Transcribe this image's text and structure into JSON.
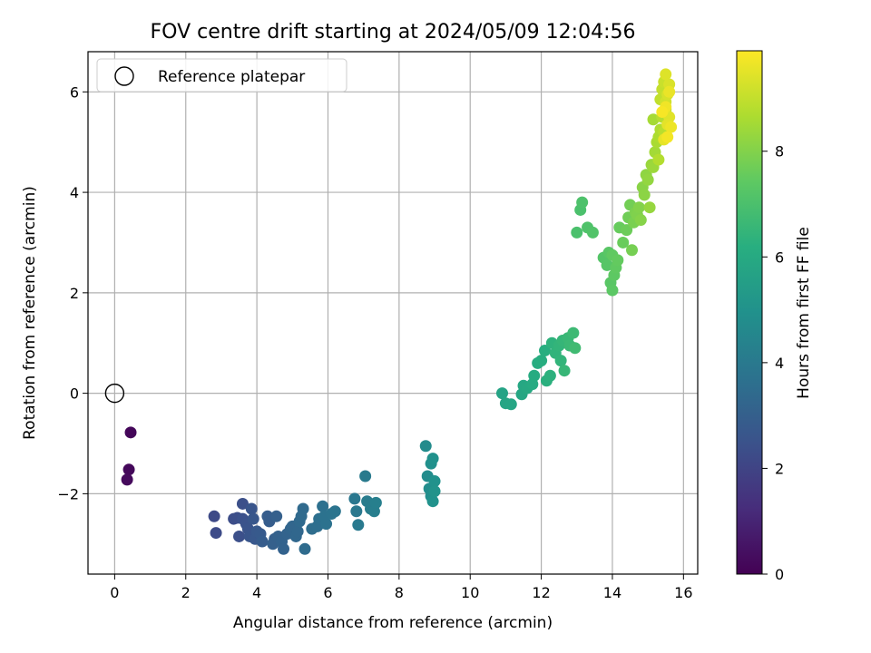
{
  "chart_data": {
    "type": "scatter",
    "title": "FOV centre drift starting at 2024/05/09 12:04:56",
    "xlabel": "Angular distance from reference (arcmin)",
    "ylabel": "Rotation from reference (arcmin)",
    "xlim": [
      -0.75,
      16.4
    ],
    "ylim": [
      -3.6,
      6.8
    ],
    "xticks": [
      0,
      2,
      4,
      6,
      8,
      10,
      12,
      14,
      16
    ],
    "yticks": [
      -2,
      0,
      2,
      4,
      6
    ],
    "grid": true,
    "legend": {
      "placement": "upper-left",
      "entries": [
        "Reference platepar"
      ]
    },
    "reference_point": {
      "name": "Reference platepar",
      "x": 0,
      "y": 0
    },
    "colorbar": {
      "label": "Hours from first FF file",
      "colormap": "viridis",
      "range": [
        0,
        9.9
      ],
      "ticks": [
        0,
        2,
        4,
        6,
        8
      ]
    },
    "points": [
      [
        0.45,
        -0.78,
        0.15
      ],
      [
        0.4,
        -1.52,
        0.2
      ],
      [
        0.35,
        -1.72,
        0.25
      ],
      [
        2.8,
        -2.45,
        2.2
      ],
      [
        2.85,
        -2.78,
        2.25
      ],
      [
        3.35,
        -2.5,
        2.3
      ],
      [
        3.45,
        -2.48,
        2.35
      ],
      [
        3.6,
        -2.2,
        2.4
      ],
      [
        3.5,
        -2.85,
        2.4
      ],
      [
        3.6,
        -2.5,
        2.45
      ],
      [
        3.7,
        -2.6,
        2.5
      ],
      [
        3.75,
        -2.7,
        2.55
      ],
      [
        3.85,
        -2.3,
        2.6
      ],
      [
        3.8,
        -2.85,
        2.6
      ],
      [
        3.9,
        -2.5,
        2.65
      ],
      [
        3.95,
        -2.9,
        2.7
      ],
      [
        4.0,
        -2.75,
        2.75
      ],
      [
        4.1,
        -2.8,
        2.8
      ],
      [
        4.15,
        -2.95,
        2.85
      ],
      [
        4.3,
        -2.45,
        2.9
      ],
      [
        4.35,
        -2.55,
        2.9
      ],
      [
        4.5,
        -2.9,
        2.95
      ],
      [
        4.45,
        -3.0,
        3.0
      ],
      [
        4.55,
        -2.45,
        3.0
      ],
      [
        4.6,
        -2.85,
        3.05
      ],
      [
        4.7,
        -2.95,
        3.1
      ],
      [
        4.75,
        -3.1,
        3.1
      ],
      [
        4.85,
        -2.8,
        3.15
      ],
      [
        4.95,
        -2.7,
        3.2
      ],
      [
        5.0,
        -2.65,
        3.25
      ],
      [
        5.1,
        -2.85,
        3.3
      ],
      [
        5.15,
        -2.75,
        3.3
      ],
      [
        5.2,
        -2.55,
        3.35
      ],
      [
        5.25,
        -2.45,
        3.4
      ],
      [
        5.3,
        -2.3,
        3.4
      ],
      [
        5.35,
        -3.1,
        3.45
      ],
      [
        5.55,
        -2.7,
        3.5
      ],
      [
        5.7,
        -2.65,
        3.55
      ],
      [
        5.75,
        -2.5,
        3.6
      ],
      [
        5.85,
        -2.25,
        3.65
      ],
      [
        5.9,
        -2.45,
        3.7
      ],
      [
        5.95,
        -2.6,
        3.7
      ],
      [
        6.1,
        -2.4,
        3.75
      ],
      [
        6.2,
        -2.35,
        3.8
      ],
      [
        6.75,
        -2.1,
        3.9
      ],
      [
        6.8,
        -2.35,
        3.95
      ],
      [
        6.85,
        -2.62,
        4.0
      ],
      [
        7.05,
        -1.65,
        4.05
      ],
      [
        7.1,
        -2.15,
        4.1
      ],
      [
        7.2,
        -2.3,
        4.15
      ],
      [
        7.3,
        -2.35,
        4.2
      ],
      [
        7.35,
        -2.18,
        4.25
      ],
      [
        8.75,
        -1.05,
        4.7
      ],
      [
        8.8,
        -1.65,
        4.75
      ],
      [
        8.85,
        -1.9,
        4.8
      ],
      [
        8.9,
        -2.05,
        4.85
      ],
      [
        8.9,
        -1.4,
        4.9
      ],
      [
        8.95,
        -1.3,
        4.95
      ],
      [
        8.95,
        -2.15,
        5.0
      ],
      [
        9.0,
        -1.75,
        5.0
      ],
      [
        9.0,
        -1.95,
        5.05
      ],
      [
        10.9,
        0.0,
        5.7
      ],
      [
        11.0,
        -0.2,
        5.75
      ],
      [
        11.15,
        -0.22,
        5.8
      ],
      [
        11.45,
        -0.02,
        5.85
      ],
      [
        11.5,
        0.15,
        5.9
      ],
      [
        11.6,
        0.1,
        5.95
      ],
      [
        11.75,
        0.18,
        6.0
      ],
      [
        11.8,
        0.35,
        6.05
      ],
      [
        11.9,
        0.6,
        6.1
      ],
      [
        12.0,
        0.65,
        6.15
      ],
      [
        12.1,
        0.85,
        6.2
      ],
      [
        12.15,
        0.25,
        6.25
      ],
      [
        12.25,
        0.35,
        6.3
      ],
      [
        12.3,
        1.0,
        6.35
      ],
      [
        12.4,
        0.8,
        6.4
      ],
      [
        12.5,
        0.95,
        6.45
      ],
      [
        12.55,
        0.65,
        6.45
      ],
      [
        12.6,
        1.05,
        6.5
      ],
      [
        12.65,
        0.45,
        6.55
      ],
      [
        12.75,
        1.1,
        6.6
      ],
      [
        12.8,
        0.95,
        6.65
      ],
      [
        12.9,
        1.2,
        6.7
      ],
      [
        12.95,
        0.9,
        6.75
      ],
      [
        13.0,
        3.2,
        7.0
      ],
      [
        13.1,
        3.65,
        7.0
      ],
      [
        13.15,
        3.8,
        7.05
      ],
      [
        13.3,
        3.3,
        7.1
      ],
      [
        13.45,
        3.2,
        7.15
      ],
      [
        13.75,
        2.7,
        7.2
      ],
      [
        13.85,
        2.55,
        7.25
      ],
      [
        13.9,
        2.8,
        7.3
      ],
      [
        13.95,
        2.2,
        7.3
      ],
      [
        14.0,
        2.05,
        7.35
      ],
      [
        14.05,
        2.35,
        7.4
      ],
      [
        14.1,
        2.5,
        7.45
      ],
      [
        14.0,
        2.75,
        7.45
      ],
      [
        14.15,
        2.65,
        7.5
      ],
      [
        14.2,
        3.3,
        7.55
      ],
      [
        14.3,
        3.0,
        7.6
      ],
      [
        14.4,
        3.25,
        7.65
      ],
      [
        14.45,
        3.5,
        7.7
      ],
      [
        14.5,
        3.75,
        7.75
      ],
      [
        14.55,
        2.85,
        7.8
      ],
      [
        14.6,
        3.4,
        7.85
      ],
      [
        14.65,
        3.6,
        7.9
      ],
      [
        14.7,
        3.55,
        7.95
      ],
      [
        14.75,
        3.7,
        8.0
      ],
      [
        14.8,
        3.45,
        8.05
      ],
      [
        14.85,
        4.1,
        8.1
      ],
      [
        14.9,
        3.95,
        8.15
      ],
      [
        14.95,
        4.35,
        8.2
      ],
      [
        15.0,
        4.25,
        8.25
      ],
      [
        15.05,
        3.7,
        8.3
      ],
      [
        15.1,
        4.55,
        8.35
      ],
      [
        15.15,
        4.5,
        8.4
      ],
      [
        15.2,
        4.8,
        8.5
      ],
      [
        15.15,
        5.45,
        8.55
      ],
      [
        15.25,
        5.0,
        8.6
      ],
      [
        15.3,
        5.1,
        8.65
      ],
      [
        15.35,
        5.25,
        8.7
      ],
      [
        15.3,
        4.65,
        8.75
      ],
      [
        15.4,
        5.5,
        8.8
      ],
      [
        15.45,
        5.2,
        8.85
      ],
      [
        15.5,
        5.65,
        8.9
      ],
      [
        15.35,
        5.85,
        8.95
      ],
      [
        15.4,
        6.05,
        9.0
      ],
      [
        15.45,
        6.2,
        9.1
      ],
      [
        15.5,
        5.8,
        9.2
      ],
      [
        15.55,
        5.95,
        9.3
      ],
      [
        15.6,
        6.15,
        9.35
      ],
      [
        15.5,
        6.35,
        9.4
      ],
      [
        15.6,
        5.5,
        9.45
      ],
      [
        15.55,
        5.35,
        9.5
      ],
      [
        15.45,
        5.05,
        9.55
      ],
      [
        15.6,
        6.0,
        9.6
      ],
      [
        15.65,
        5.3,
        9.65
      ],
      [
        15.5,
        5.7,
        9.7
      ],
      [
        15.55,
        5.1,
        9.75
      ],
      [
        15.4,
        5.6,
        9.8
      ]
    ]
  }
}
